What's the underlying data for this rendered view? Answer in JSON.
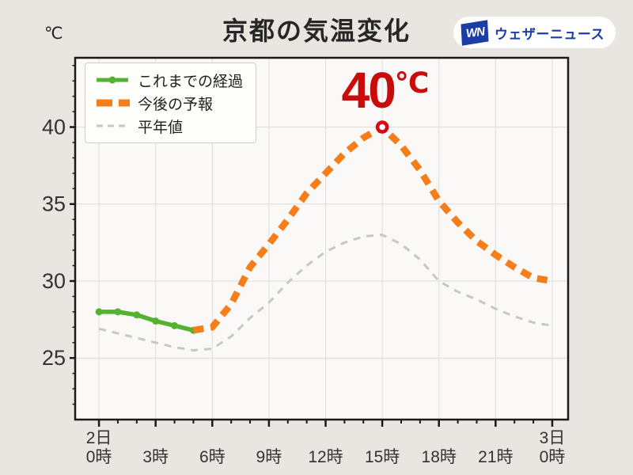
{
  "page": {
    "background": "#e9e6e2",
    "unit_label": "℃"
  },
  "header": {
    "title": "京都の気温変化",
    "logo": {
      "mark": "WN",
      "name": "ウェザーニュース",
      "blue": "#1c3da6"
    }
  },
  "annotation": {
    "value": "40",
    "unit": "℃",
    "color": "#c90b0b"
  },
  "legend": {
    "position": "top-left"
  },
  "chart_data": {
    "type": "line",
    "title": "京都の気温変化",
    "ylabel": "℃",
    "xlim": [
      -1.26,
      24.84
    ],
    "ylim": [
      21.0,
      44.5
    ],
    "grid": true,
    "grid_color": "#dcdcdc",
    "plot_bg": "#faf9f7",
    "frame_color": "#1a1a1a",
    "y_ticks": [
      25,
      30,
      35,
      40
    ],
    "x_ticks": [
      {
        "h": 0,
        "label": "2日\n0時"
      },
      {
        "h": 3,
        "label": "3時"
      },
      {
        "h": 6,
        "label": "6時"
      },
      {
        "h": 9,
        "label": "9時"
      },
      {
        "h": 12,
        "label": "12時"
      },
      {
        "h": 15,
        "label": "15時"
      },
      {
        "h": 18,
        "label": "18時"
      },
      {
        "h": 21,
        "label": "21時"
      },
      {
        "h": 24,
        "label": "3日\n0時"
      }
    ],
    "series": [
      {
        "name": "これまでの経過",
        "color": "#55b230",
        "style": "solid",
        "width": 5.5,
        "marker": "circle",
        "x": [
          0,
          1,
          2,
          3,
          4,
          5
        ],
        "values": [
          28.0,
          28.0,
          27.8,
          27.4,
          27.1,
          26.8
        ]
      },
      {
        "name": "今後の予報",
        "color": "#f57e1a",
        "style": "dashed",
        "width": 8.5,
        "dash": "13 9",
        "x": [
          5,
          6,
          7,
          8,
          9,
          10,
          11,
          12,
          13,
          14,
          15,
          16,
          17,
          18,
          19,
          20,
          21,
          22,
          23,
          24
        ],
        "values": [
          26.8,
          27.0,
          28.5,
          30.9,
          32.4,
          34.0,
          35.7,
          37.0,
          38.3,
          39.3,
          40.0,
          38.8,
          37.2,
          35.2,
          33.8,
          32.6,
          31.7,
          30.9,
          30.2,
          30.0
        ]
      },
      {
        "name": "平年値",
        "color": "#c7c7c7",
        "style": "dashed",
        "width": 3,
        "dash": "9 8",
        "x": [
          0,
          1,
          2,
          3,
          4,
          5,
          6,
          7,
          8,
          9,
          10,
          11,
          12,
          13,
          14,
          15,
          16,
          17,
          18,
          19,
          20,
          21,
          22,
          23,
          24
        ],
        "values": [
          26.9,
          26.6,
          26.3,
          26.0,
          25.7,
          25.5,
          25.6,
          26.4,
          27.6,
          28.6,
          29.9,
          31.0,
          31.9,
          32.5,
          32.9,
          33.0,
          32.4,
          31.4,
          30.0,
          29.3,
          28.8,
          28.2,
          27.7,
          27.3,
          27.1
        ]
      }
    ],
    "peak_marker": {
      "x": 15,
      "y": 40,
      "ring_color": "#d60914",
      "label": "40℃"
    }
  }
}
